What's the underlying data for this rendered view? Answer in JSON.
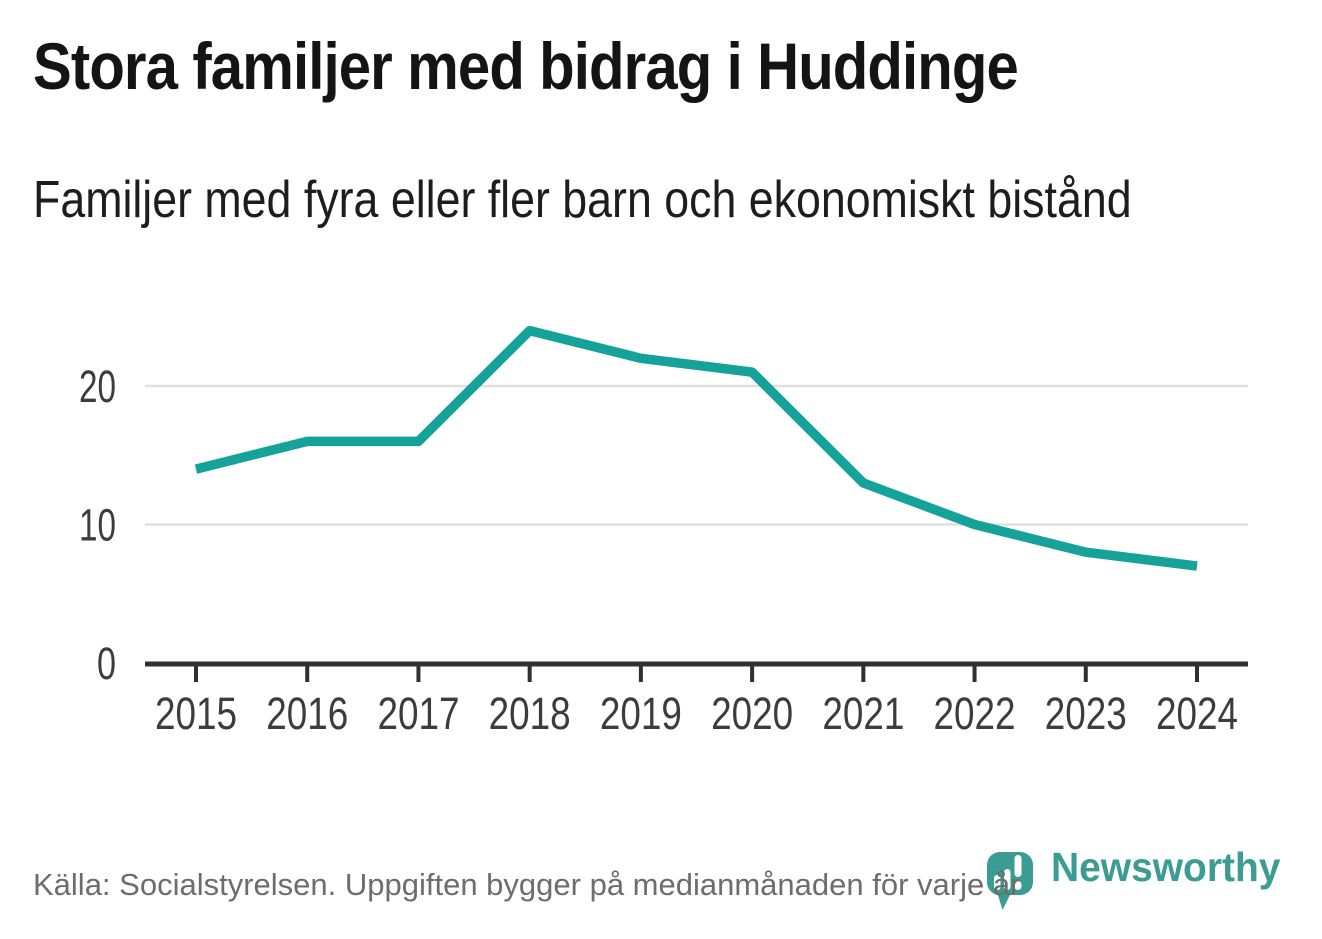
{
  "header": {
    "title": "Stora familjer med bidrag i Huddinge",
    "subtitle": "Familjer med fyra eller fler barn och ekonomiskt bistånd"
  },
  "chart_data": {
    "type": "line",
    "title": "Stora familjer med bidrag i Huddinge",
    "subtitle": "Familjer med fyra eller fler barn och ekonomiskt bistånd",
    "categories": [
      "2015",
      "2016",
      "2017",
      "2018",
      "2019",
      "2020",
      "2021",
      "2022",
      "2023",
      "2024"
    ],
    "values": [
      14,
      16,
      16,
      24,
      22,
      21,
      13,
      10,
      8,
      7
    ],
    "series": [
      {
        "name": "Familjer med fyra eller fler barn och ekonomiskt bistånd",
        "values": [
          14,
          16,
          16,
          24,
          22,
          21,
          13,
          10,
          8,
          7
        ]
      }
    ],
    "xlabel": "",
    "ylabel": "",
    "yticks": [
      0,
      10,
      20
    ],
    "ylim": [
      0,
      25
    ],
    "grid": true,
    "legend": false,
    "colors": {
      "line": "#15a298",
      "grid": "#e0e0e0",
      "axis": "#303030",
      "tick_label": "#3c3c3c"
    }
  },
  "footer": {
    "source": "Källa: Socialstyrelsen. Uppgiften bygger på medianmånaden för varje år",
    "brand": "Newsworthy",
    "brand_color": "#3a9c93",
    "logo_icon": "barchart-pin-icon"
  }
}
